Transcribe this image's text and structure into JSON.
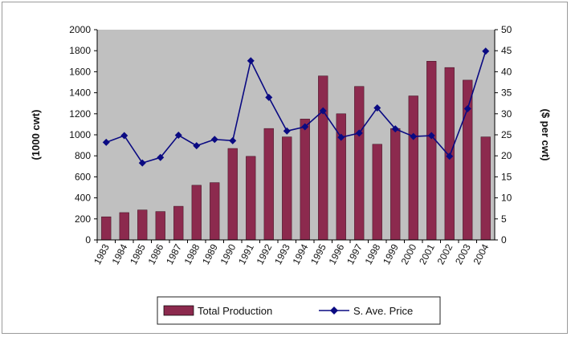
{
  "chart_data": {
    "type": "bar",
    "categories": [
      "1983",
      "1984",
      "1985",
      "1986",
      "1987",
      "1988",
      "1989",
      "1990",
      "1991",
      "1992",
      "1993",
      "1994",
      "1995",
      "1996",
      "1997",
      "1998",
      "1999",
      "2000",
      "2001",
      "2002",
      "2003",
      "2004"
    ],
    "series": [
      {
        "name": "Total Production",
        "type": "bar",
        "axis": "left",
        "values": [
          220,
          260,
          285,
          270,
          320,
          520,
          545,
          870,
          795,
          1060,
          980,
          1150,
          1560,
          1200,
          1460,
          910,
          1060,
          1370,
          1700,
          1640,
          1520,
          980
        ]
      },
      {
        "name": "S. Ave. Price",
        "type": "line",
        "axis": "right",
        "values": [
          23.2,
          24.8,
          18.3,
          19.6,
          24.9,
          22.4,
          23.9,
          23.6,
          42.6,
          33.9,
          25.9,
          26.9,
          30.7,
          24.4,
          25.4,
          31.4,
          26.4,
          24.6,
          24.8,
          19.9,
          31.2,
          44.9
        ]
      }
    ],
    "ylabel_left": "(1000 cwt)",
    "ylabel_right": "($ per cwt)",
    "ylim_left": [
      0,
      2000
    ],
    "ylim_right": [
      0,
      50
    ],
    "yticks_left": [
      "0",
      "200",
      "400",
      "600",
      "800",
      "1000",
      "1200",
      "1400",
      "1600",
      "1800",
      "2000"
    ],
    "yticks_right": [
      "0",
      "5",
      "10",
      "15",
      "20",
      "25",
      "30",
      "35",
      "40",
      "45",
      "50"
    ],
    "legend": "bottom",
    "colors": {
      "bar": "#8c2a4e",
      "line": "#0a0a82",
      "plot_bg": "#c0c0c0"
    }
  }
}
